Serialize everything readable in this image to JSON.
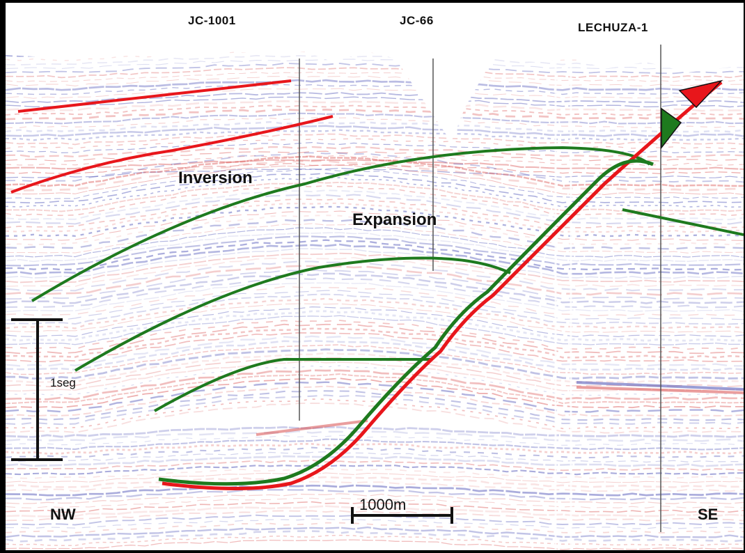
{
  "wells": [
    {
      "name": "JC-1001"
    },
    {
      "name": "JC-66"
    },
    {
      "name": "LECHUZA-1"
    }
  ],
  "zones": {
    "inversion": "Inversion",
    "expansion": "Expansion"
  },
  "orientation": {
    "left": "NW",
    "right": "SE"
  },
  "scale": {
    "vertical_label": "1seg",
    "horizontal_label": "1000m"
  },
  "colors": {
    "fault": "#e8161b",
    "horizon": "#1e7a1e",
    "seismic_red": "#d9504f",
    "seismic_blue": "#4a4fb5",
    "well_line": "#555555"
  },
  "legend_icons": [
    "red-arrow-icon",
    "green-arrow-icon"
  ]
}
